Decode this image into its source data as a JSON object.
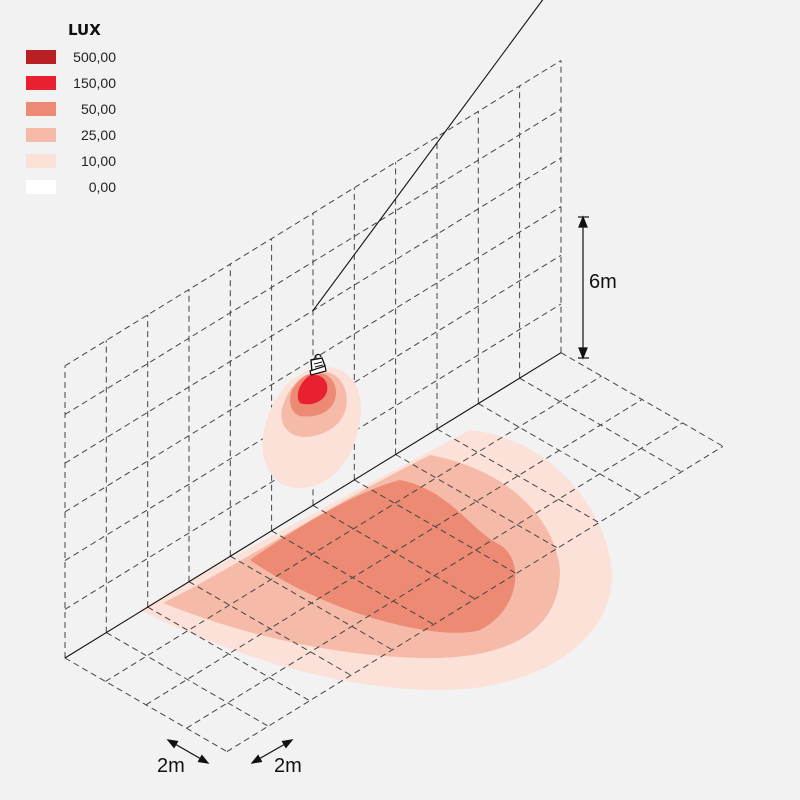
{
  "legend": {
    "title": "LUX",
    "items": [
      {
        "value": "500,00",
        "color": "#b82024"
      },
      {
        "value": "150,00",
        "color": "#e8202f"
      },
      {
        "value": "50,00",
        "color": "#ec8a74"
      },
      {
        "value": "25,00",
        "color": "#f6bba8"
      },
      {
        "value": "10,00",
        "color": "#fbe1d8"
      },
      {
        "value": "0,00",
        "color": "#ffffff"
      }
    ]
  },
  "dimensions": {
    "height_label": "6m",
    "grid_x_label": "2m",
    "grid_y_label": "2m"
  },
  "colors": {
    "background": "#f2f2f2",
    "grid_line": "#444444",
    "solid_line": "#111111"
  }
}
